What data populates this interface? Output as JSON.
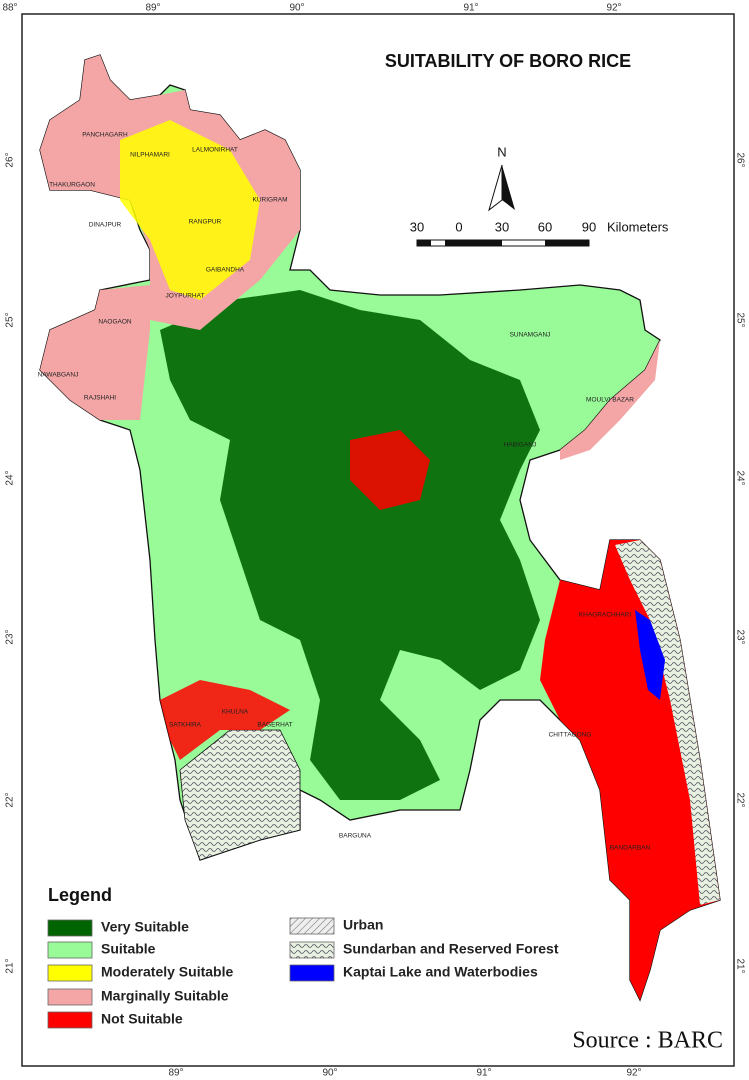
{
  "title": "SUITABILITY OF BORO RICE",
  "north": "N",
  "scale": {
    "labels": [
      "30",
      "0",
      "30",
      "60",
      "90"
    ],
    "unit": "Kilometers"
  },
  "graticule": {
    "top": [
      "88°",
      "89°",
      "90°",
      "91°",
      "92°"
    ],
    "bottom": [
      "89°",
      "90°",
      "91°",
      "92°"
    ],
    "left": [
      "26°",
      "25°",
      "24°",
      "23°",
      "22°",
      "21°"
    ],
    "right": [
      "26°",
      "25°",
      "24°",
      "23°",
      "22°",
      "21°"
    ]
  },
  "districts": [
    "PANCHAGARH",
    "THAKURGAON",
    "NILPHAMARI",
    "LALMONIRHAT",
    "DINAJPUR",
    "RANGPUR",
    "KURIGRAM",
    "GAIBANDHA",
    "JOYPURHAT",
    "NAOGAON",
    "NAWABGANJ",
    "RAJSHAHI",
    "SUNAMGANJ",
    "HABIGANJ",
    "MOULVI BAZAR",
    "KHAGRACHHARI",
    "CHITTAGONG",
    "BANDARBAN",
    "KHULNA",
    "SATKHIRA",
    "BAGERHAT",
    "BARGUNA"
  ],
  "legend": {
    "title": "Legend",
    "items": [
      {
        "label": "Very Suitable",
        "color": "#006400"
      },
      {
        "label": "Suitable",
        "color": "#98fb98"
      },
      {
        "label": "Moderately Suitable",
        "color": "#ffff00"
      },
      {
        "label": "Marginally Suitable",
        "color": "#f4a6a6"
      },
      {
        "label": "Not Suitable",
        "color": "#ff0000"
      },
      {
        "label": "Urban"
      },
      {
        "label": "Sundarban and Reserved Forest"
      },
      {
        "label": "Kaptai Lake and Waterbodies",
        "color": "#0000ff"
      }
    ]
  },
  "source": "Source : BARC"
}
